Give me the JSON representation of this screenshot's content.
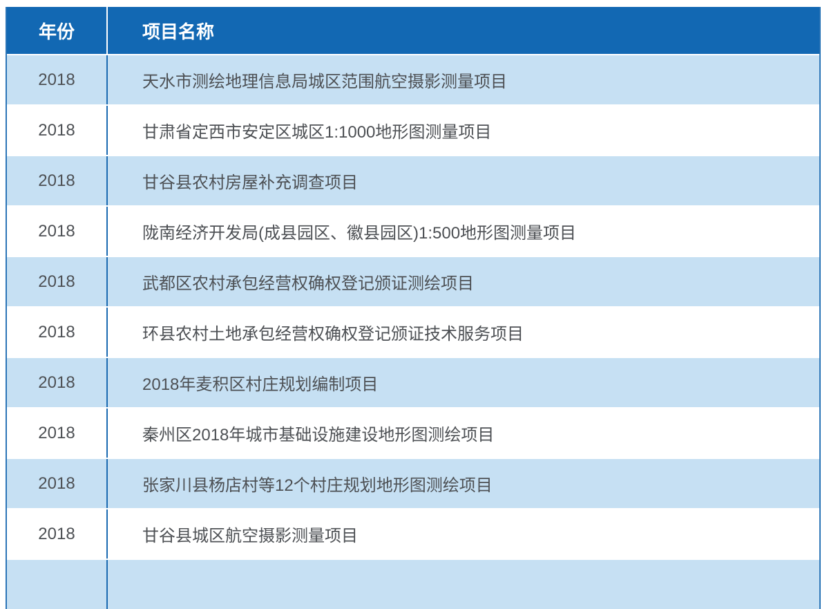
{
  "table": {
    "columns": [
      "年份",
      "项目名称"
    ],
    "rows": [
      {
        "year": "2018",
        "name": "天水市测绘地理信息局城区范围航空摄影测量项目"
      },
      {
        "year": "2018",
        "name": "甘肃省定西市安定区城区1:1000地形图测量项目"
      },
      {
        "year": "2018",
        "name": "甘谷县农村房屋补充调查项目"
      },
      {
        "year": "2018",
        "name": "陇南经济开发局(成县园区、徽县园区)1:500地形图测量项目"
      },
      {
        "year": "2018",
        "name": "武都区农村承包经营权确权登记颁证测绘项目"
      },
      {
        "year": "2018",
        "name": "环县农村土地承包经营权确权登记颁证技术服务项目"
      },
      {
        "year": "2018",
        "name": "2018年麦积区村庄规划编制项目"
      },
      {
        "year": "2018",
        "name": "秦州区2018年城市基础设施建设地形图测绘项目"
      },
      {
        "year": "2018",
        "name": "张家川县杨店村等12个村庄规划地形图测绘项目"
      },
      {
        "year": "2018",
        "name": "甘谷县城区航空摄影测量项目"
      }
    ],
    "partial_row": {
      "year": "",
      "name": ""
    }
  },
  "colors": {
    "header_bg": "#1268b3",
    "header_text": "#ffffff",
    "row_alt_bg": "#c6e0f3",
    "row_bg": "#ffffff",
    "column_divider": "#1a6ab1",
    "table_border": "#2a74b6",
    "body_text": "#4d5054"
  }
}
